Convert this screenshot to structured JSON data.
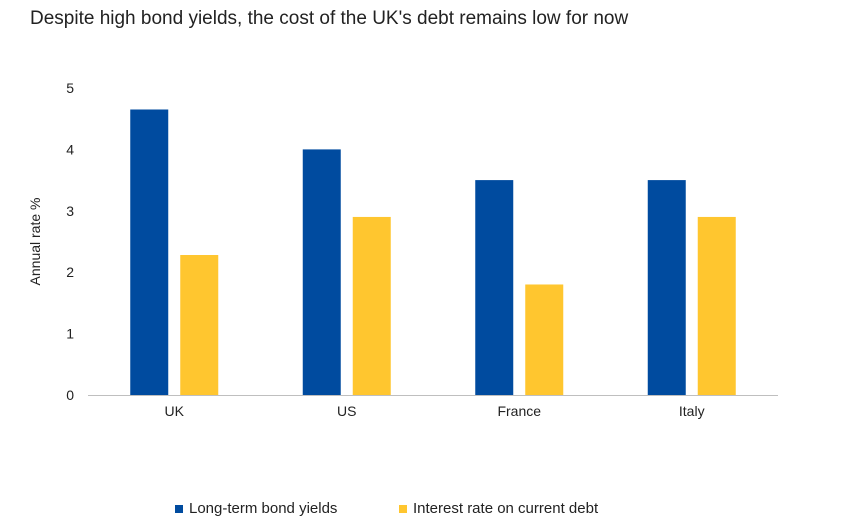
{
  "chart_data": {
    "type": "bar",
    "title": "Despite high bond yields, the cost of the UK's debt remains low for now",
    "xlabel": "",
    "ylabel": "Annual rate %",
    "ylim": [
      0,
      5
    ],
    "yticks": [
      "0",
      "1",
      "2",
      "3",
      "4",
      "5"
    ],
    "categories": [
      "UK",
      "US",
      "France",
      "Italy"
    ],
    "series": [
      {
        "name": "Long-term bond yields",
        "color": "#004b9f",
        "values": [
          4.65,
          4.0,
          3.5,
          3.5
        ]
      },
      {
        "name": "Interest rate on current debt",
        "color": "#ffc62f",
        "values": [
          2.28,
          2.9,
          1.8,
          2.9
        ]
      }
    ],
    "legend_position": "bottom",
    "grid": false
  }
}
